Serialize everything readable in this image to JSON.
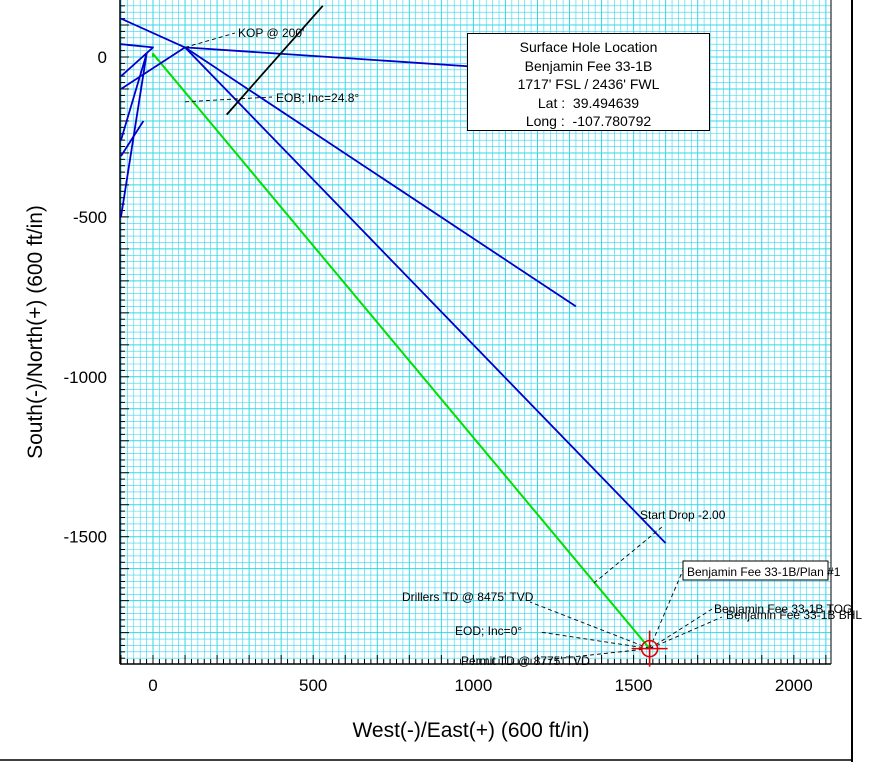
{
  "chart_data": {
    "type": "line",
    "title": "",
    "xlabel": "West(-)/East(+) (600 ft/in)",
    "ylabel": "South(-)/North(+) (600 ft/in)",
    "xlim": [
      -100,
      2100
    ],
    "ylim": [
      -1900,
      150
    ],
    "xticks": [
      0,
      500,
      1000,
      1500,
      2000
    ],
    "yticks": [
      0,
      -500,
      -1000,
      -1500
    ],
    "grid": true,
    "colors": {
      "grid": "#33d6ee",
      "plan": "#00e000",
      "offset_wells": "#0000cc",
      "target": "#e00000",
      "annotation": "#000000"
    },
    "series": [
      {
        "name": "Benjamin Fee 33-1B/Plan #1",
        "points": [
          [
            0,
            0
          ],
          [
            0,
            10
          ],
          [
            1550,
            -1850
          ]
        ]
      },
      {
        "name": "",
        "points": [
          [
            100,
            30
          ],
          [
            1320,
            -780
          ]
        ]
      },
      {
        "name": "",
        "points": [
          [
            100,
            30
          ],
          [
            1600,
            -1520
          ]
        ]
      },
      {
        "name": "",
        "points": [
          [
            100,
            30
          ],
          [
            1000,
            -30
          ]
        ]
      },
      {
        "name": "",
        "points": [
          [
            -100,
            120
          ],
          [
            100,
            30
          ],
          [
            -100,
            -100
          ]
        ]
      },
      {
        "name": "",
        "points": [
          [
            -100,
            40
          ],
          [
            0,
            30
          ],
          [
            -100,
            -60
          ]
        ]
      },
      {
        "name": "",
        "points": [
          [
            -100,
            -260
          ],
          [
            -20,
            10
          ],
          [
            -100,
            -500
          ]
        ]
      },
      {
        "name": "",
        "points": [
          [
            -100,
            -310
          ],
          [
            -30,
            -200
          ]
        ]
      },
      {
        "name": "",
        "points": [
          [
            230,
            -180
          ],
          [
            530,
            160
          ]
        ]
      }
    ],
    "annotations": [
      {
        "text": "KOP @ 200'"
      },
      {
        "text": "EOB; Inc=24.8°"
      },
      {
        "text": "Start Drop -2.00"
      },
      {
        "text": "Benjamin Fee 33-1B/Plan #1"
      },
      {
        "text": "Benjamin Fee 33-1B TOG"
      },
      {
        "text": "Benjamin Fee 33-1B BHL"
      },
      {
        "text": "Drillers TD @ 8475' TVD"
      },
      {
        "text": "EOD; Inc=0°"
      },
      {
        "text": "Permit TD @ 8775' TVD"
      }
    ]
  },
  "info_box": {
    "lines": [
      "Surface Hole Location",
      "Benjamin Fee 33-1B",
      "1717' FSL / 2436' FWL",
      "Lat :  39.494639",
      "Long :  -107.780792"
    ]
  }
}
